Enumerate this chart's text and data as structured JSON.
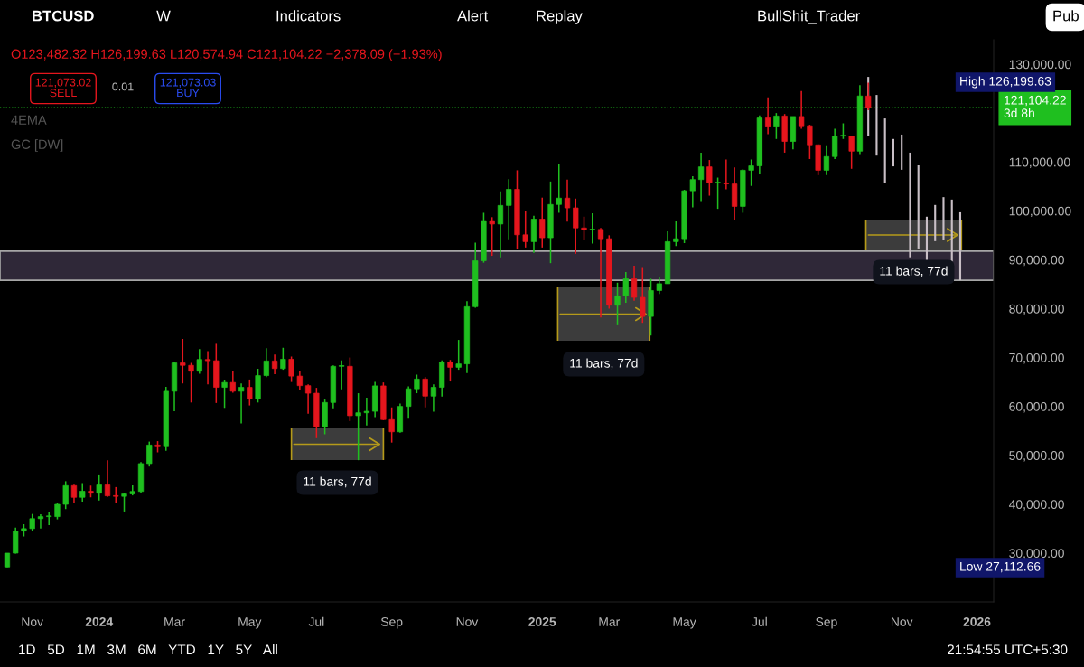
{
  "chart_data": {
    "type": "candlestick",
    "title": "BTCUSD",
    "x": [
      "2023-10-16",
      "2023-10-23",
      "2023-10-30",
      "2023-11-06",
      "2023-11-13",
      "2023-11-20",
      "2023-11-27",
      "2023-12-04",
      "2023-12-11",
      "2023-12-18",
      "2023-12-25",
      "2024-01-01",
      "2024-01-08",
      "2024-01-15",
      "2024-01-22",
      "2024-01-29",
      "2024-02-05",
      "2024-02-12",
      "2024-02-19",
      "2024-02-26",
      "2024-03-04",
      "2024-03-11",
      "2024-03-18",
      "2024-03-25",
      "2024-04-01",
      "2024-04-08",
      "2024-04-15",
      "2024-04-22",
      "2024-04-29",
      "2024-05-06",
      "2024-05-13",
      "2024-05-20",
      "2024-05-27",
      "2024-06-03",
      "2024-06-10",
      "2024-06-17",
      "2024-06-24",
      "2024-07-01",
      "2024-07-08",
      "2024-07-15",
      "2024-07-22",
      "2024-07-29",
      "2024-08-05",
      "2024-08-12",
      "2024-08-19",
      "2024-08-26",
      "2024-09-02",
      "2024-09-09",
      "2024-09-16",
      "2024-09-23",
      "2024-09-30",
      "2024-10-07",
      "2024-10-14",
      "2024-10-21",
      "2024-10-28",
      "2024-11-04",
      "2024-11-11",
      "2024-11-18",
      "2024-11-25",
      "2024-12-02",
      "2024-12-09",
      "2024-12-16",
      "2024-12-23",
      "2024-12-30",
      "2025-01-06",
      "2025-01-13",
      "2025-01-20",
      "2025-01-27",
      "2025-02-03",
      "2025-02-10",
      "2025-02-17",
      "2025-02-24",
      "2025-03-03",
      "2025-03-10",
      "2025-03-17",
      "2025-03-24",
      "2025-03-31",
      "2025-04-07",
      "2025-04-14",
      "2025-04-21",
      "2025-04-28",
      "2025-05-05",
      "2025-05-12",
      "2025-05-19",
      "2025-05-26",
      "2025-06-02",
      "2025-06-09",
      "2025-06-16",
      "2025-06-23",
      "2025-06-30",
      "2025-07-07",
      "2025-07-14",
      "2025-07-21",
      "2025-07-28",
      "2025-08-04",
      "2025-08-11",
      "2025-08-18",
      "2025-08-25",
      "2025-09-01",
      "2025-09-08",
      "2025-09-15",
      "2025-09-22",
      "2025-09-29",
      "2025-10-06"
    ],
    "ohlc": [
      [
        27150,
        30000,
        27112.66,
        29990
      ],
      [
        29990,
        35200,
        29900,
        34500
      ],
      [
        34500,
        35900,
        33400,
        35000
      ],
      [
        35000,
        38000,
        34500,
        37050
      ],
      [
        37050,
        37950,
        35000,
        37450
      ],
      [
        37450,
        38400,
        35700,
        37450
      ],
      [
        37450,
        40300,
        36900,
        39970
      ],
      [
        39970,
        44700,
        39000,
        43800
      ],
      [
        43800,
        44000,
        40200,
        41400
      ],
      [
        41400,
        44300,
        40500,
        42650
      ],
      [
        42650,
        43800,
        41400,
        42250
      ],
      [
        42250,
        45900,
        40750,
        43950
      ],
      [
        43950,
        49000,
        41500,
        41700
      ],
      [
        41700,
        43500,
        40300,
        41600
      ],
      [
        41600,
        42200,
        38500,
        42100
      ],
      [
        42100,
        43850,
        41800,
        42600
      ],
      [
        42600,
        48600,
        42300,
        48300
      ],
      [
        48300,
        52800,
        47700,
        52100
      ],
      [
        52100,
        52900,
        50600,
        51750
      ],
      [
        51750,
        64000,
        50900,
        63100
      ],
      [
        63100,
        69000,
        59000,
        68900
      ],
      [
        68900,
        73800,
        64700,
        68400
      ],
      [
        68400,
        68900,
        60800,
        67200
      ],
      [
        67200,
        71700,
        66700,
        69600
      ],
      [
        69600,
        71300,
        64500,
        69350
      ],
      [
        69350,
        72800,
        60700,
        63900
      ],
      [
        63900,
        65450,
        59700,
        64900
      ],
      [
        64900,
        67200,
        62800,
        63100
      ],
      [
        63100,
        64700,
        56500,
        63900
      ],
      [
        63900,
        65500,
        60200,
        61500
      ],
      [
        61500,
        67700,
        60800,
        66300
      ],
      [
        66300,
        71900,
        66000,
        69300
      ],
      [
        69300,
        70600,
        66600,
        67750
      ],
      [
        67750,
        72000,
        67500,
        69650
      ],
      [
        69650,
        70200,
        65000,
        66200
      ],
      [
        66200,
        67300,
        63400,
        64250
      ],
      [
        64250,
        64500,
        58500,
        62700
      ],
      [
        62700,
        63800,
        53500,
        55800
      ],
      [
        55800,
        61400,
        54300,
        60800
      ],
      [
        60800,
        68400,
        59600,
        68200
      ],
      [
        68200,
        69400,
        63500,
        68200
      ],
      [
        68200,
        70000,
        57000,
        58100
      ],
      [
        58100,
        62700,
        49000,
        58700
      ],
      [
        58700,
        61800,
        56100,
        59000
      ],
      [
        59000,
        65000,
        57800,
        64200
      ],
      [
        64200,
        64900,
        57200,
        57300
      ],
      [
        57300,
        59800,
        52600,
        54800
      ],
      [
        54800,
        60600,
        54600,
        60000
      ],
      [
        60000,
        64100,
        57500,
        63600
      ],
      [
        63600,
        66500,
        62700,
        65600
      ],
      [
        65600,
        66000,
        59800,
        62100
      ],
      [
        62100,
        64500,
        58900,
        63900
      ],
      [
        63900,
        69400,
        62000,
        69000
      ],
      [
        69000,
        69500,
        65100,
        68000
      ],
      [
        68000,
        73600,
        67500,
        68700
      ],
      [
        68700,
        81500,
        66800,
        80400
      ],
      [
        80400,
        93500,
        80200,
        89800
      ],
      [
        89800,
        99600,
        89400,
        98000
      ],
      [
        98000,
        98700,
        90800,
        97300
      ],
      [
        97300,
        104000,
        90500,
        101100
      ],
      [
        101100,
        106500,
        94200,
        104400
      ],
      [
        104400,
        108300,
        92200,
        95100
      ],
      [
        95100,
        99900,
        92500,
        93700
      ],
      [
        93700,
        99000,
        91400,
        98300
      ],
      [
        98300,
        102700,
        92500,
        94500
      ],
      [
        94500,
        106000,
        89300,
        101300
      ],
      [
        101300,
        109600,
        99600,
        102600
      ],
      [
        102600,
        106400,
        97800,
        100600
      ],
      [
        100600,
        102500,
        91200,
        96500
      ],
      [
        96500,
        98800,
        94100,
        96100
      ],
      [
        96100,
        99500,
        93300,
        96200
      ],
      [
        96200,
        96500,
        78200,
        94300
      ],
      [
        94300,
        95000,
        80000,
        80700
      ],
      [
        80700,
        85300,
        76600,
        82600
      ],
      [
        82600,
        87500,
        81200,
        86100
      ],
      [
        86100,
        88800,
        81600,
        82300
      ],
      [
        82300,
        88500,
        77100,
        78400
      ],
      [
        78400,
        86100,
        74500,
        83700
      ],
      [
        83700,
        86500,
        83000,
        85100
      ],
      [
        85100,
        95800,
        85100,
        93700
      ],
      [
        93700,
        97900,
        92800,
        94300
      ],
      [
        94300,
        104300,
        93400,
        104100
      ],
      [
        104100,
        107100,
        100700,
        106400
      ],
      [
        106400,
        111900,
        102000,
        109000
      ],
      [
        109000,
        110400,
        103100,
        105700
      ],
      [
        105700,
        106800,
        100400,
        105700
      ],
      [
        105700,
        110500,
        104400,
        105500
      ],
      [
        105500,
        108900,
        98200,
        100900
      ],
      [
        100900,
        108500,
        99600,
        108300
      ],
      [
        108300,
        110500,
        105100,
        109200
      ],
      [
        109200,
        119500,
        107500,
        119000
      ],
      [
        119000,
        123200,
        115700,
        117300
      ],
      [
        117300,
        120000,
        114700,
        119400
      ],
      [
        119400,
        119800,
        111900,
        114200
      ],
      [
        114200,
        119300,
        112600,
        119300
      ],
      [
        119300,
        124500,
        116800,
        117400
      ],
      [
        117400,
        117600,
        110600,
        113500
      ],
      [
        113500,
        113600,
        107300,
        108300
      ],
      [
        108300,
        113400,
        107300,
        111100
      ],
      [
        111100,
        116800,
        110600,
        115300
      ],
      [
        115300,
        117900,
        114700,
        115300
      ],
      [
        115300,
        115400,
        108600,
        112200
      ],
      [
        112200,
        125700,
        111600,
        123500
      ],
      [
        123482.32,
        126199.63,
        120574.94,
        121104.22
      ]
    ],
    "colors": [
      "#1fbf1f",
      "#1fbf1f",
      "#1fbf1f",
      "#1fbf1f",
      "#1fbf1f",
      "#1fbf1f",
      "#1fbf1f",
      "#1fbf1f",
      "#e5161d",
      "#1fbf1f",
      "#e5161d",
      "#1fbf1f",
      "#e5161d",
      "#e5161d",
      "#1fbf1f",
      "#1fbf1f",
      "#1fbf1f",
      "#1fbf1f",
      "#e5161d",
      "#1fbf1f",
      "#1fbf1f",
      "#e5161d",
      "#e5161d",
      "#1fbf1f",
      "#e5161d",
      "#e5161d",
      "#1fbf1f",
      "#e5161d",
      "#1fbf1f",
      "#e5161d",
      "#1fbf1f",
      "#1fbf1f",
      "#e5161d",
      "#1fbf1f",
      "#e5161d",
      "#e5161d",
      "#e5161d",
      "#e5161d",
      "#1fbf1f",
      "#1fbf1f",
      "#1fbf1f",
      "#e5161d",
      "#1fbf1f",
      "#1fbf1f",
      "#1fbf1f",
      "#e5161d",
      "#e5161d",
      "#1fbf1f",
      "#1fbf1f",
      "#1fbf1f",
      "#e5161d",
      "#1fbf1f",
      "#1fbf1f",
      "#e5161d",
      "#1fbf1f",
      "#1fbf1f",
      "#1fbf1f",
      "#1fbf1f",
      "#e5161d",
      "#1fbf1f",
      "#1fbf1f",
      "#e5161d",
      "#e5161d",
      "#1fbf1f",
      "#e5161d",
      "#1fbf1f",
      "#1fbf1f",
      "#e5161d",
      "#e5161d",
      "#e5161d",
      "#1fbf1f",
      "#e5161d",
      "#e5161d",
      "#1fbf1f",
      "#1fbf1f",
      "#e5161d",
      "#e5161d",
      "#1fbf1f",
      "#1fbf1f",
      "#1fbf1f",
      "#1fbf1f",
      "#1fbf1f",
      "#1fbf1f",
      "#1fbf1f",
      "#e5161d",
      "#1fbf1f",
      "#e5161d",
      "#e5161d",
      "#1fbf1f",
      "#1fbf1f",
      "#1fbf1f",
      "#e5161d",
      "#1fbf1f",
      "#e5161d",
      "#1fbf1f",
      "#e5161d",
      "#e5161d",
      "#e5161d",
      "#1fbf1f",
      "#1fbf1f",
      "#1fbf1f",
      "#e5161d",
      "#1fbf1f",
      "#e5161d"
    ],
    "series": [
      {
        "type": "bar",
        "color": "#c9bfc6",
        "x": [
          "2025-10-06",
          "2025-10-13",
          "2025-10-20",
          "2025-10-27",
          "2025-11-03",
          "2025-11-10",
          "2025-11-17",
          "2025-11-24",
          "2025-12-01",
          "2025-12-08",
          "2025-12-15",
          "2025-12-22"
        ],
        "base": [
          115400,
          111300,
          105600,
          109100,
          108400,
          90500,
          92300,
          85800,
          93800,
          94100,
          85800,
          85800
        ],
        "values": [
          12000,
          12400,
          13300,
          5600,
          7200,
          21400,
          17000,
          13000,
          7400,
          8700,
          16500,
          13900
        ]
      }
    ],
    "xlim": [
      "2023-10-10",
      "2026-01-19"
    ],
    "xticks": [
      {
        "value": "2023-11-06",
        "label": "Nov"
      },
      {
        "value": "2024-01-01",
        "label": "2024"
      },
      {
        "value": "2024-03-04",
        "label": "Mar"
      },
      {
        "value": "2024-05-06",
        "label": "May"
      },
      {
        "value": "2024-07-01",
        "label": "Jul"
      },
      {
        "value": "2024-09-02",
        "label": "Sep"
      },
      {
        "value": "2024-11-04",
        "label": "Nov"
      },
      {
        "value": "2025-01-06",
        "label": "2025"
      },
      {
        "value": "2025-03-03",
        "label": "Mar"
      },
      {
        "value": "2025-05-05",
        "label": "May"
      },
      {
        "value": "2025-07-07",
        "label": "Jul"
      },
      {
        "value": "2025-09-01",
        "label": "Sep"
      },
      {
        "value": "2025-11-03",
        "label": "Nov"
      },
      {
        "value": "2026-01-05",
        "label": "2026"
      }
    ],
    "ylim": [
      20000,
      135000
    ],
    "yticks": [
      {
        "value": 30000,
        "label": "30,000.00"
      },
      {
        "value": 40000,
        "label": "40,000.00"
      },
      {
        "value": 50000,
        "label": "50,000.00"
      },
      {
        "value": 60000,
        "label": "60,000.00"
      },
      {
        "value": 70000,
        "label": "70,000.00"
      },
      {
        "value": 80000,
        "label": "80,000.00"
      },
      {
        "value": 90000,
        "label": "90,000.00"
      },
      {
        "value": 100000,
        "label": "100,000.00"
      },
      {
        "value": 110000,
        "label": "110,000.00"
      },
      {
        "value": 130000,
        "label": "130,000.00"
      }
    ],
    "ref_lines": [
      {
        "axis": "y",
        "value": 121104.22,
        "label": "121,104.22\n3d 8h",
        "color": "#1fbf1f",
        "line_style": "dotted"
      }
    ],
    "bands": [
      {
        "axis": "x",
        "from": "2024-06-10",
        "to": "2024-08-26",
        "color": "#505050"
      },
      {
        "axis": "x",
        "from": "2025-01-19",
        "to": "2025-04-06",
        "color": "#505050"
      },
      {
        "axis": "x",
        "from": "2025-10-04",
        "to": "2025-12-23",
        "color": "#505050"
      },
      {
        "axis": "y",
        "from": 85800,
        "to": 91750,
        "color": "#3b3346"
      }
    ],
    "annotations": [
      "11 bars, 77d",
      "11 bars, 77d",
      "11 bars, 77d",
      "High 126,199.63",
      "Low 27,112.66",
      "O123,482.32 H126,199.63 L120,574.94 C121,104.22 −2,378.09 (−1.93%)",
      "121,073.02\nSELL",
      "0.01",
      "121,073.03\nBUY",
      "4EMA",
      "GC [DW]",
      "W",
      "Indicators",
      "Alert",
      "Replay",
      "BullShit_Trader",
      "Pub",
      "1D   5D   1M   3M   6M   YTD   1Y   5Y   All",
      "21:54:55 UTC+5:30"
    ]
  }
}
